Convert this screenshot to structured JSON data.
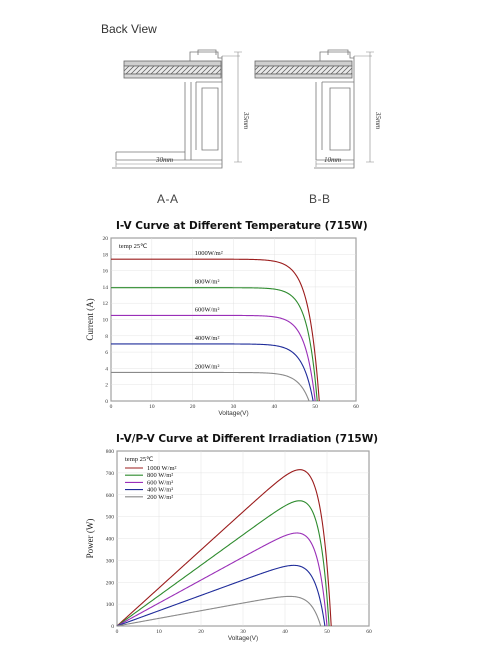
{
  "drawing": {
    "title": "Back View",
    "section_a": {
      "label": "A-A",
      "width_dim": "30mm",
      "height_dim": "35mm"
    },
    "section_b": {
      "label": "B-B",
      "width_dim": "10mm",
      "height_dim": "35mm"
    }
  },
  "chart_data": [
    {
      "type": "line",
      "title": "I-V Curve at Different Temperature (715W)",
      "xlabel": "Voltage(V)",
      "ylabel": "Current (A)",
      "xlim": [
        0,
        60
      ],
      "ylim": [
        0,
        20
      ],
      "xticks": [
        0,
        10,
        20,
        30,
        40,
        50,
        60
      ],
      "yticks": [
        0,
        2,
        4,
        6,
        8,
        10,
        12,
        14,
        16,
        18,
        20
      ],
      "annotation": "temp  25℃",
      "grid": true,
      "series": [
        {
          "name": "1000W/m²",
          "color": "#9b1c1c",
          "isc": 17.4,
          "imp": 16.6,
          "vmp": 43,
          "voc": 51
        },
        {
          "name": "800W/m²",
          "color": "#2e8b2e",
          "isc": 13.9,
          "imp": 13.3,
          "vmp": 43,
          "voc": 50.5
        },
        {
          "name": "600W/m²",
          "color": "#9a2fb8",
          "isc": 10.5,
          "imp": 10.0,
          "vmp": 42.5,
          "voc": 50
        },
        {
          "name": "400W/m²",
          "color": "#1f2c9a",
          "isc": 7.0,
          "imp": 6.6,
          "vmp": 42,
          "voc": 49.5
        },
        {
          "name": "200W/m²",
          "color": "#8a8a8a",
          "isc": 3.5,
          "imp": 3.3,
          "vmp": 41,
          "voc": 48.5
        }
      ]
    },
    {
      "type": "line",
      "title": "I-V/P-V Curve at Different Irradiation (715W)",
      "xlabel": "Voltage(V)",
      "ylabel": "Power (W)",
      "xlim": [
        0,
        60
      ],
      "ylim": [
        0,
        800
      ],
      "xticks": [
        0,
        10,
        20,
        30,
        40,
        50,
        60
      ],
      "yticks": [
        0,
        100,
        200,
        300,
        400,
        500,
        600,
        700,
        800
      ],
      "annotation": "temp  25℃",
      "legend_position": "top-left",
      "grid": true,
      "series": [
        {
          "name": "1000  W/m²",
          "color": "#9b1c1c",
          "isc": 17.4,
          "imp": 16.6,
          "vmp": 43,
          "voc": 51
        },
        {
          "name": "800   W/m²",
          "color": "#2e8b2e",
          "isc": 13.9,
          "imp": 13.3,
          "vmp": 43,
          "voc": 50.5
        },
        {
          "name": "600   W/m²",
          "color": "#9a2fb8",
          "isc": 10.5,
          "imp": 10.0,
          "vmp": 42.5,
          "voc": 50
        },
        {
          "name": "400   W/m²",
          "color": "#1f2c9a",
          "isc": 7.0,
          "imp": 6.6,
          "vmp": 42,
          "voc": 49.5
        },
        {
          "name": "200   W/m²",
          "color": "#8a8a8a",
          "isc": 3.5,
          "imp": 3.3,
          "vmp": 41,
          "voc": 48.5
        }
      ]
    }
  ]
}
